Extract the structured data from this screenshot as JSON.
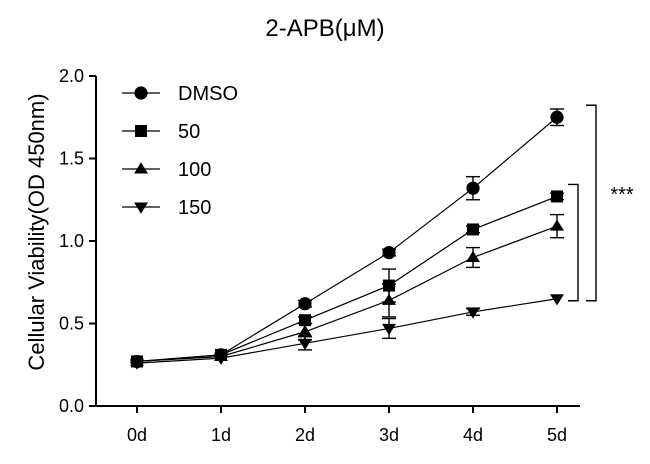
{
  "chart_data": {
    "type": "line",
    "title": "2-APB(μM)",
    "xlabel": "",
    "ylabel": "Cellular Viability(OD 450nm)",
    "ylim": [
      0,
      2.0
    ],
    "yticks": [
      "0.0",
      "0.5",
      "1.0",
      "1.5",
      "2.0"
    ],
    "categories": [
      "0d",
      "1d",
      "2d",
      "3d",
      "4d",
      "5d"
    ],
    "legend_position": "top-left",
    "series": [
      {
        "name": "DMSO",
        "marker": "circle",
        "values": [
          0.27,
          0.31,
          0.62,
          0.93,
          1.32,
          1.75
        ],
        "errors": [
          0.01,
          0.01,
          0.02,
          0.02,
          0.07,
          0.05
        ]
      },
      {
        "name": "50",
        "marker": "square",
        "values": [
          0.27,
          0.31,
          0.52,
          0.73,
          1.07,
          1.27
        ],
        "errors": [
          0.01,
          0.01,
          0.02,
          0.1,
          0.02,
          0.02
        ]
      },
      {
        "name": "100",
        "marker": "triangle-up",
        "values": [
          0.27,
          0.3,
          0.45,
          0.64,
          0.9,
          1.09
        ],
        "errors": [
          0.01,
          0.01,
          0.05,
          0.1,
          0.06,
          0.07
        ]
      },
      {
        "name": "150",
        "marker": "triangle-down",
        "values": [
          0.26,
          0.29,
          0.38,
          0.47,
          0.57,
          0.65
        ],
        "errors": [
          0.01,
          0.01,
          0.04,
          0.06,
          0.02,
          0.01
        ]
      }
    ],
    "significance": [
      {
        "label": "***",
        "from": "DMSO",
        "to": "150"
      },
      {
        "label": "",
        "from": "50",
        "to": "150"
      }
    ]
  }
}
